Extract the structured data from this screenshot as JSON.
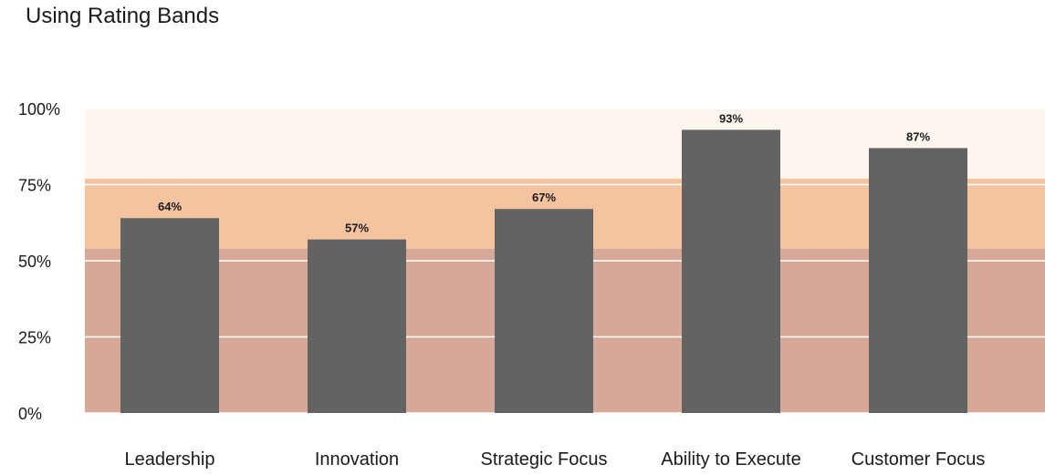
{
  "chart_data": {
    "type": "bar",
    "title": "Using Rating Bands",
    "categories": [
      "Leadership",
      "Innovation",
      "Strategic Focus",
      "Ability to Execute",
      "Customer Focus"
    ],
    "values": [
      64,
      57,
      67,
      93,
      87
    ],
    "data_labels": [
      "64%",
      "57%",
      "67%",
      "93%",
      "87%"
    ],
    "ylim": [
      0,
      100
    ],
    "yticks": [
      0,
      25,
      50,
      75,
      100
    ],
    "ytick_labels": [
      "0%",
      "25%",
      "50%",
      "75%",
      "100%"
    ],
    "bands": [
      {
        "from": 0,
        "to": 54,
        "color": "#d5a898"
      },
      {
        "from": 54,
        "to": 77,
        "color": "#f5c3a0"
      },
      {
        "from": 77,
        "to": 100,
        "color": "#fcf6ee"
      }
    ],
    "bar_color": "#636363",
    "gridline_color": "#ffffff",
    "grid": true,
    "legend": "none"
  }
}
